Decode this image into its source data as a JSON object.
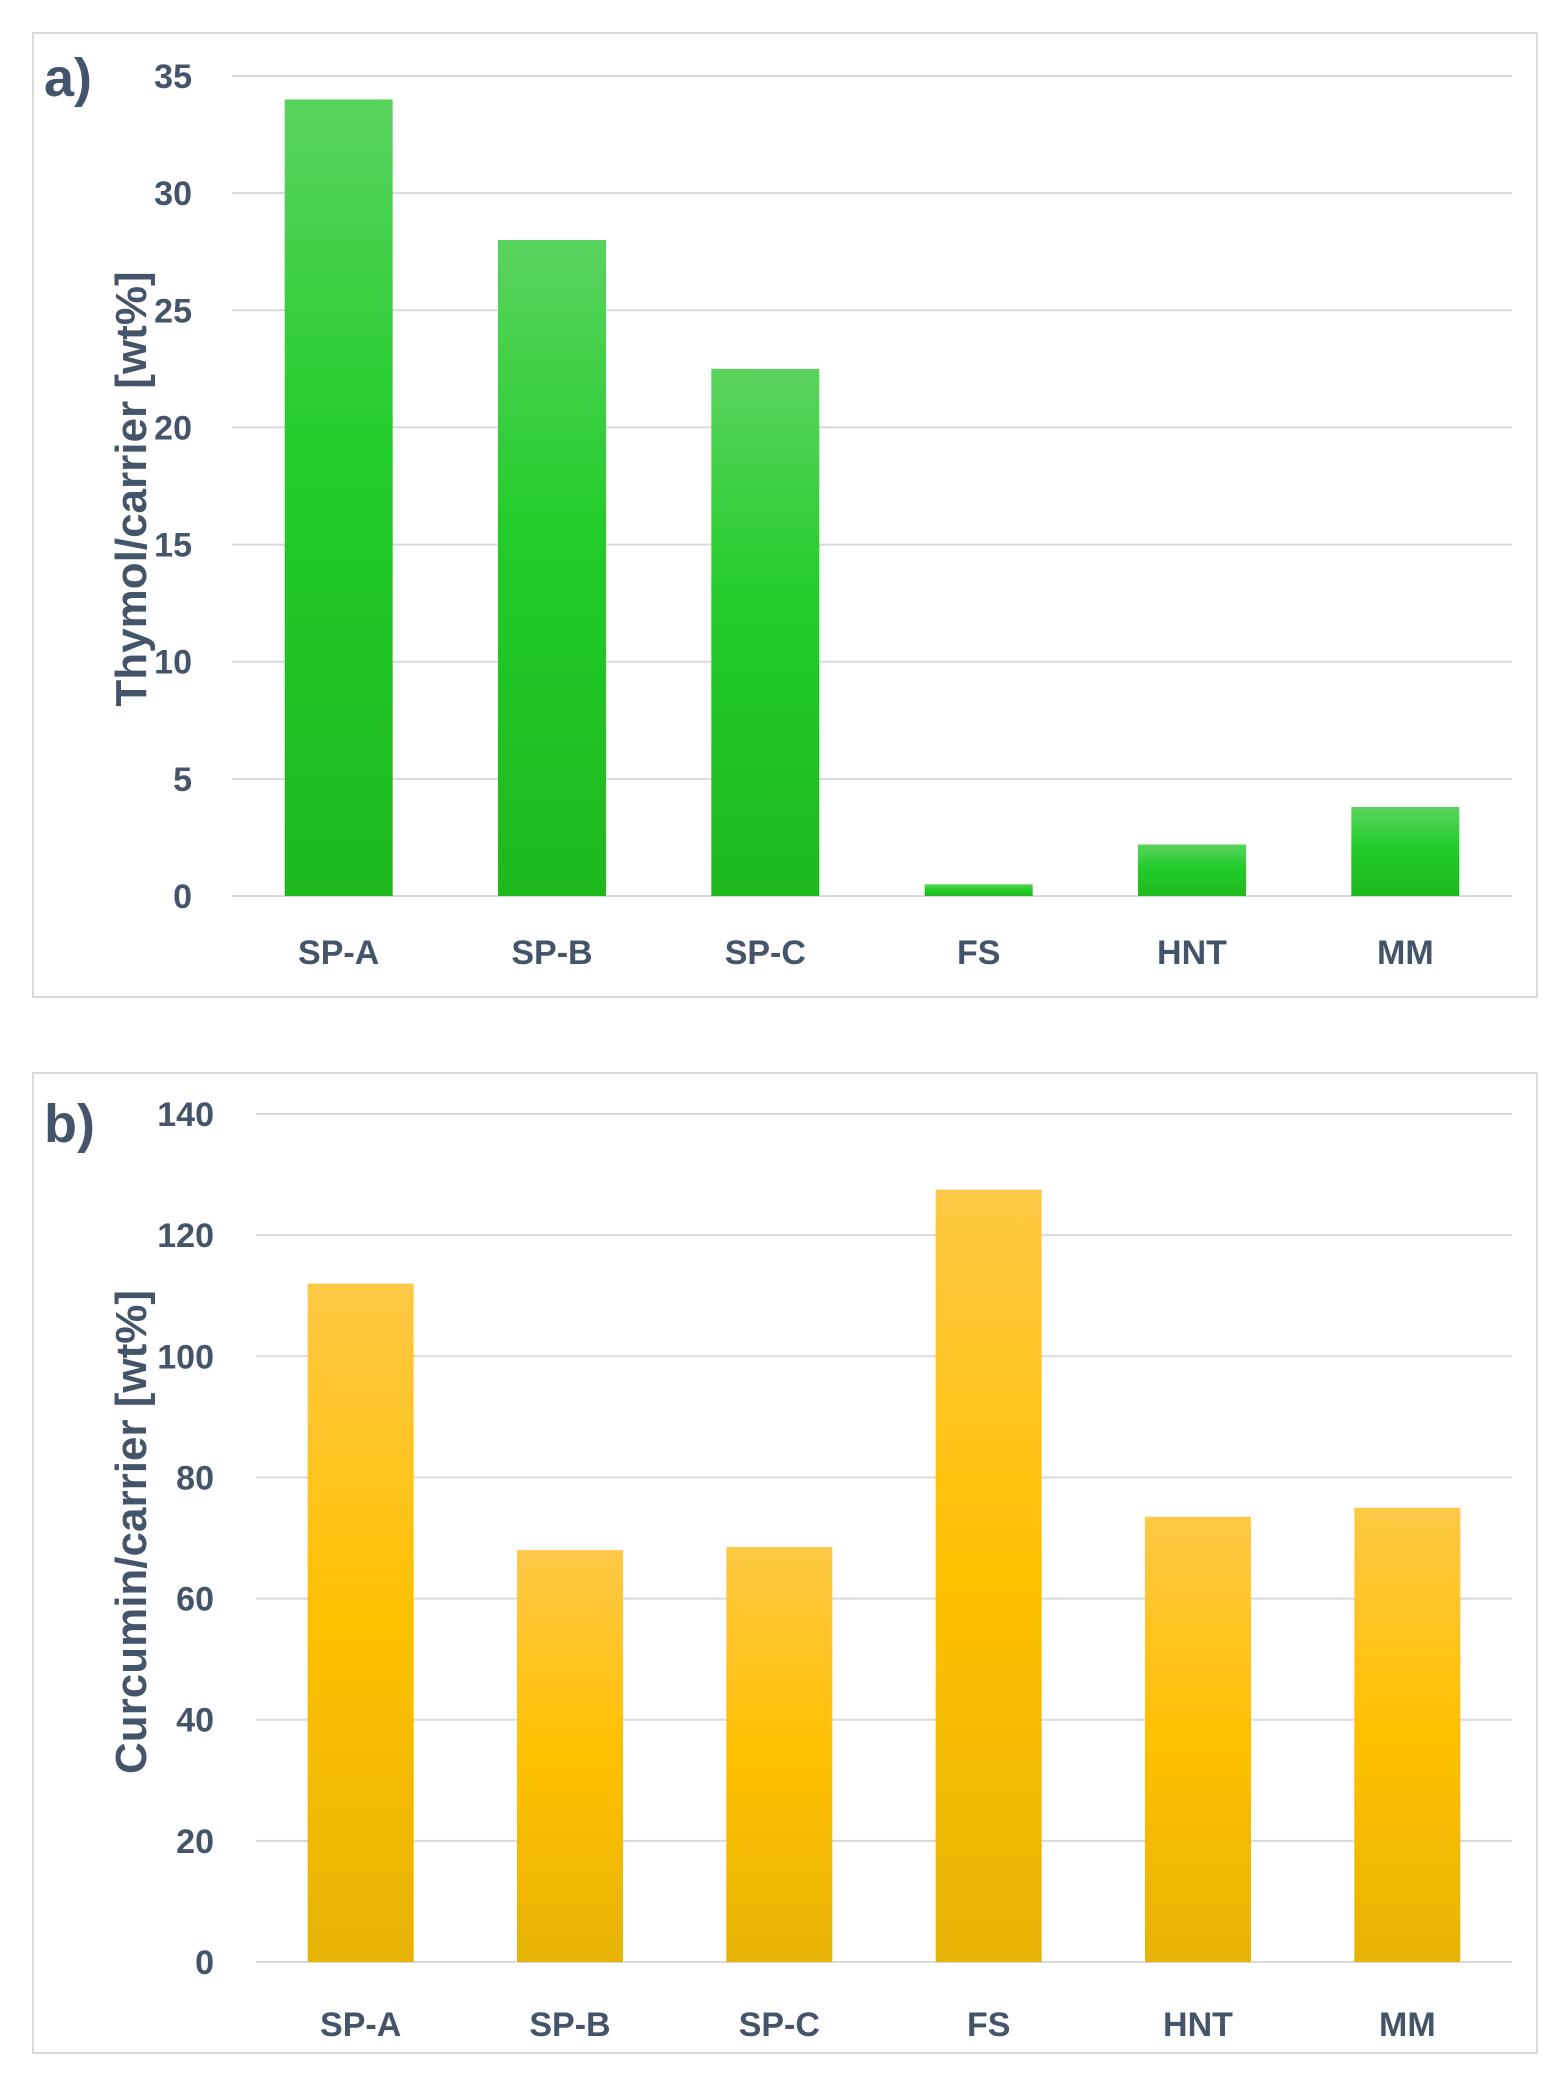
{
  "chart_data": [
    {
      "type": "bar",
      "panel_label": "a)",
      "categories": [
        "SP-A",
        "SP-B",
        "SP-C",
        "FS",
        "HNT",
        "MM"
      ],
      "values": [
        34.0,
        28.0,
        22.5,
        0.5,
        2.2,
        3.8
      ],
      "ylabel": "Thymol/carrier [wt%]",
      "xlabel": "",
      "ylim": [
        0,
        35
      ],
      "yticks": [
        0,
        5,
        10,
        15,
        20,
        25,
        30,
        35
      ],
      "grid": true,
      "legend": "none",
      "bar_color": "#2ecc40"
    },
    {
      "type": "bar",
      "panel_label": "b)",
      "categories": [
        "SP-A",
        "SP-B",
        "SP-C",
        "FS",
        "HNT",
        "MM"
      ],
      "values": [
        112,
        68,
        68.5,
        127.5,
        73.5,
        75
      ],
      "ylabel": "Curcumin/carrier [wt%]",
      "xlabel": "",
      "ylim": [
        0,
        140
      ],
      "yticks": [
        0,
        20,
        40,
        60,
        80,
        100,
        120,
        140
      ],
      "grid": true,
      "legend": "none",
      "bar_color": "#ffc000"
    }
  ]
}
